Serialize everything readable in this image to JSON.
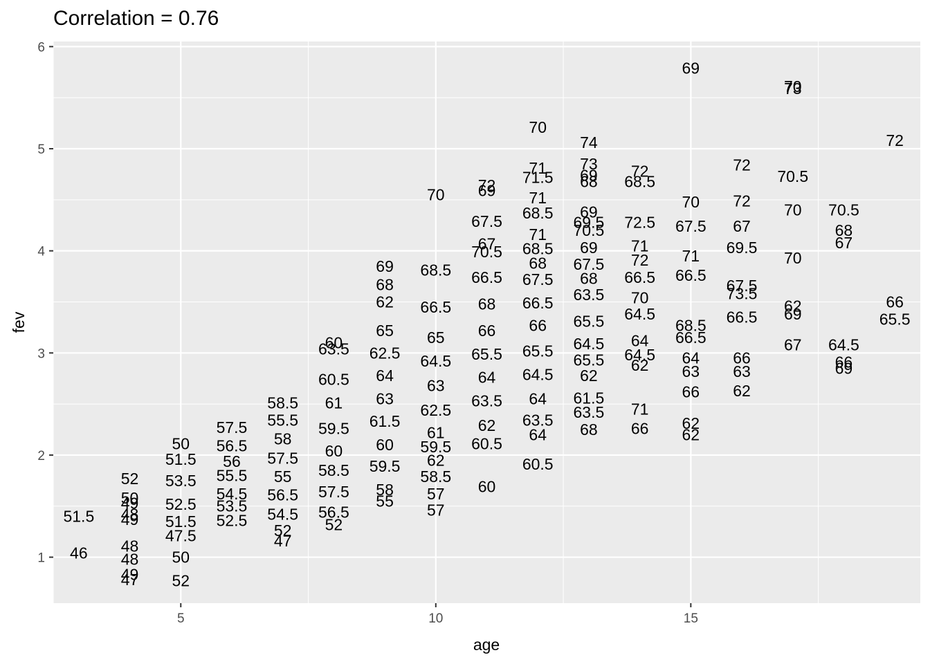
{
  "chart_data": {
    "type": "scatter",
    "title": "Correlation = 0.76",
    "xlabel": "age",
    "ylabel": "fev",
    "xlim": [
      2.5,
      19.5
    ],
    "ylim": [
      0.55,
      6.05
    ],
    "x_ticks": [
      5,
      10,
      15
    ],
    "y_ticks": [
      1,
      2,
      3,
      4,
      5,
      6
    ],
    "grid": true,
    "point_style": "text labels showing height",
    "points": [
      {
        "x": 3,
        "y": 1.4,
        "label": "51.5"
      },
      {
        "x": 3,
        "y": 1.04,
        "label": "46"
      },
      {
        "x": 4,
        "y": 1.77,
        "label": "52"
      },
      {
        "x": 4,
        "y": 1.58,
        "label": "50"
      },
      {
        "x": 4,
        "y": 1.53,
        "label": "49"
      },
      {
        "x": 4,
        "y": 1.42,
        "label": "48"
      },
      {
        "x": 4,
        "y": 1.37,
        "label": "49"
      },
      {
        "x": 4,
        "y": 1.11,
        "label": "48"
      },
      {
        "x": 4,
        "y": 0.98,
        "label": "48"
      },
      {
        "x": 4,
        "y": 0.83,
        "label": "49"
      },
      {
        "x": 4,
        "y": 0.78,
        "label": "47"
      },
      {
        "x": 5,
        "y": 2.11,
        "label": "50"
      },
      {
        "x": 5,
        "y": 1.96,
        "label": "51.5"
      },
      {
        "x": 5,
        "y": 1.75,
        "label": "53.5"
      },
      {
        "x": 5,
        "y": 1.52,
        "label": "52.5"
      },
      {
        "x": 5,
        "y": 1.35,
        "label": "51.5"
      },
      {
        "x": 5,
        "y": 1.21,
        "label": "47.5"
      },
      {
        "x": 5,
        "y": 1.0,
        "label": "50"
      },
      {
        "x": 5,
        "y": 0.77,
        "label": "52"
      },
      {
        "x": 6,
        "y": 2.27,
        "label": "57.5"
      },
      {
        "x": 6,
        "y": 2.09,
        "label": "56.5"
      },
      {
        "x": 6,
        "y": 1.94,
        "label": "56"
      },
      {
        "x": 6,
        "y": 1.8,
        "label": "55.5"
      },
      {
        "x": 6,
        "y": 1.62,
        "label": "54.5"
      },
      {
        "x": 6,
        "y": 1.5,
        "label": "53.5"
      },
      {
        "x": 6,
        "y": 1.36,
        "label": "52.5"
      },
      {
        "x": 7,
        "y": 2.51,
        "label": "58.5"
      },
      {
        "x": 7,
        "y": 2.34,
        "label": "55.5"
      },
      {
        "x": 7,
        "y": 2.16,
        "label": "58"
      },
      {
        "x": 7,
        "y": 1.97,
        "label": "57.5"
      },
      {
        "x": 7,
        "y": 1.79,
        "label": "55"
      },
      {
        "x": 7,
        "y": 1.61,
        "label": "56.5"
      },
      {
        "x": 7,
        "y": 1.42,
        "label": "54.5"
      },
      {
        "x": 7,
        "y": 1.26,
        "label": "52"
      },
      {
        "x": 7,
        "y": 1.16,
        "label": "47"
      },
      {
        "x": 8,
        "y": 3.1,
        "label": "60"
      },
      {
        "x": 8,
        "y": 3.04,
        "label": "63.5"
      },
      {
        "x": 8,
        "y": 2.74,
        "label": "60.5"
      },
      {
        "x": 8,
        "y": 2.51,
        "label": "61"
      },
      {
        "x": 8,
        "y": 2.26,
        "label": "59.5"
      },
      {
        "x": 8,
        "y": 2.04,
        "label": "60"
      },
      {
        "x": 8,
        "y": 1.85,
        "label": "58.5"
      },
      {
        "x": 8,
        "y": 1.64,
        "label": "57.5"
      },
      {
        "x": 8,
        "y": 1.44,
        "label": "56.5"
      },
      {
        "x": 8,
        "y": 1.32,
        "label": "52"
      },
      {
        "x": 9,
        "y": 3.85,
        "label": "69"
      },
      {
        "x": 9,
        "y": 3.67,
        "label": "68"
      },
      {
        "x": 9,
        "y": 3.5,
        "label": "62"
      },
      {
        "x": 9,
        "y": 3.22,
        "label": "65"
      },
      {
        "x": 9,
        "y": 3.0,
        "label": "62.5"
      },
      {
        "x": 9,
        "y": 2.78,
        "label": "64"
      },
      {
        "x": 9,
        "y": 2.55,
        "label": "63"
      },
      {
        "x": 9,
        "y": 2.33,
        "label": "61.5"
      },
      {
        "x": 9,
        "y": 2.1,
        "label": "60"
      },
      {
        "x": 9,
        "y": 1.89,
        "label": "59.5"
      },
      {
        "x": 9,
        "y": 1.66,
        "label": "58"
      },
      {
        "x": 9,
        "y": 1.55,
        "label": "55"
      },
      {
        "x": 10,
        "y": 4.55,
        "label": "70"
      },
      {
        "x": 10,
        "y": 3.81,
        "label": "68.5"
      },
      {
        "x": 10,
        "y": 3.45,
        "label": "66.5"
      },
      {
        "x": 10,
        "y": 3.15,
        "label": "65"
      },
      {
        "x": 10,
        "y": 2.92,
        "label": "64.5"
      },
      {
        "x": 10,
        "y": 2.68,
        "label": "63"
      },
      {
        "x": 10,
        "y": 2.44,
        "label": "62.5"
      },
      {
        "x": 10,
        "y": 2.22,
        "label": "61"
      },
      {
        "x": 10,
        "y": 2.08,
        "label": "59.5"
      },
      {
        "x": 10,
        "y": 1.95,
        "label": "62"
      },
      {
        "x": 10,
        "y": 1.79,
        "label": "58.5"
      },
      {
        "x": 10,
        "y": 1.62,
        "label": "57"
      },
      {
        "x": 10,
        "y": 1.46,
        "label": "57"
      },
      {
        "x": 11,
        "y": 4.64,
        "label": "72"
      },
      {
        "x": 11,
        "y": 4.59,
        "label": "69"
      },
      {
        "x": 11,
        "y": 4.29,
        "label": "67.5"
      },
      {
        "x": 11,
        "y": 4.07,
        "label": "67"
      },
      {
        "x": 11,
        "y": 3.99,
        "label": "70.5"
      },
      {
        "x": 11,
        "y": 3.74,
        "label": "66.5"
      },
      {
        "x": 11,
        "y": 3.48,
        "label": "68"
      },
      {
        "x": 11,
        "y": 3.22,
        "label": "66"
      },
      {
        "x": 11,
        "y": 2.99,
        "label": "65.5"
      },
      {
        "x": 11,
        "y": 2.76,
        "label": "64"
      },
      {
        "x": 11,
        "y": 2.53,
        "label": "63.5"
      },
      {
        "x": 11,
        "y": 2.29,
        "label": "62"
      },
      {
        "x": 11,
        "y": 2.11,
        "label": "60.5"
      },
      {
        "x": 11,
        "y": 1.69,
        "label": "60"
      },
      {
        "x": 12,
        "y": 5.21,
        "label": "70"
      },
      {
        "x": 12,
        "y": 4.81,
        "label": "71"
      },
      {
        "x": 12,
        "y": 4.72,
        "label": "71.5"
      },
      {
        "x": 12,
        "y": 4.52,
        "label": "71"
      },
      {
        "x": 12,
        "y": 4.37,
        "label": "68.5"
      },
      {
        "x": 12,
        "y": 4.16,
        "label": "71"
      },
      {
        "x": 12,
        "y": 4.02,
        "label": "68.5"
      },
      {
        "x": 12,
        "y": 3.88,
        "label": "68"
      },
      {
        "x": 12,
        "y": 3.72,
        "label": "67.5"
      },
      {
        "x": 12,
        "y": 3.49,
        "label": "66.5"
      },
      {
        "x": 12,
        "y": 3.27,
        "label": "66"
      },
      {
        "x": 12,
        "y": 3.02,
        "label": "65.5"
      },
      {
        "x": 12,
        "y": 2.79,
        "label": "64.5"
      },
      {
        "x": 12,
        "y": 2.55,
        "label": "64"
      },
      {
        "x": 12,
        "y": 2.34,
        "label": "63.5"
      },
      {
        "x": 12,
        "y": 2.2,
        "label": "64"
      },
      {
        "x": 12,
        "y": 1.91,
        "label": "60.5"
      },
      {
        "x": 13,
        "y": 5.06,
        "label": "74"
      },
      {
        "x": 13,
        "y": 4.85,
        "label": "73"
      },
      {
        "x": 13,
        "y": 4.74,
        "label": "69"
      },
      {
        "x": 13,
        "y": 4.68,
        "label": "68"
      },
      {
        "x": 13,
        "y": 4.38,
        "label": "69"
      },
      {
        "x": 13,
        "y": 4.28,
        "label": "69.5"
      },
      {
        "x": 13,
        "y": 4.2,
        "label": "70.5"
      },
      {
        "x": 13,
        "y": 4.03,
        "label": "69"
      },
      {
        "x": 13,
        "y": 3.87,
        "label": "67.5"
      },
      {
        "x": 13,
        "y": 3.73,
        "label": "68"
      },
      {
        "x": 13,
        "y": 3.57,
        "label": "63.5"
      },
      {
        "x": 13,
        "y": 3.31,
        "label": "65.5"
      },
      {
        "x": 13,
        "y": 3.09,
        "label": "64.5"
      },
      {
        "x": 13,
        "y": 2.93,
        "label": "65.5"
      },
      {
        "x": 13,
        "y": 2.78,
        "label": "62"
      },
      {
        "x": 13,
        "y": 2.56,
        "label": "61.5"
      },
      {
        "x": 13,
        "y": 2.42,
        "label": "63.5"
      },
      {
        "x": 13,
        "y": 2.25,
        "label": "68"
      },
      {
        "x": 14,
        "y": 4.78,
        "label": "72"
      },
      {
        "x": 14,
        "y": 4.68,
        "label": "68.5"
      },
      {
        "x": 14,
        "y": 4.28,
        "label": "72.5"
      },
      {
        "x": 14,
        "y": 4.05,
        "label": "71"
      },
      {
        "x": 14,
        "y": 3.91,
        "label": "72"
      },
      {
        "x": 14,
        "y": 3.74,
        "label": "66.5"
      },
      {
        "x": 14,
        "y": 3.54,
        "label": "70"
      },
      {
        "x": 14,
        "y": 3.38,
        "label": "64.5"
      },
      {
        "x": 14,
        "y": 3.12,
        "label": "64"
      },
      {
        "x": 14,
        "y": 2.98,
        "label": "64.5"
      },
      {
        "x": 14,
        "y": 2.88,
        "label": "62"
      },
      {
        "x": 14,
        "y": 2.45,
        "label": "71"
      },
      {
        "x": 14,
        "y": 2.26,
        "label": "66"
      },
      {
        "x": 15,
        "y": 5.79,
        "label": "69"
      },
      {
        "x": 15,
        "y": 4.48,
        "label": "70"
      },
      {
        "x": 15,
        "y": 4.24,
        "label": "67.5"
      },
      {
        "x": 15,
        "y": 3.95,
        "label": "71"
      },
      {
        "x": 15,
        "y": 3.76,
        "label": "66.5"
      },
      {
        "x": 15,
        "y": 3.27,
        "label": "68.5"
      },
      {
        "x": 15,
        "y": 3.15,
        "label": "66.5"
      },
      {
        "x": 15,
        "y": 2.95,
        "label": "64"
      },
      {
        "x": 15,
        "y": 2.82,
        "label": "63"
      },
      {
        "x": 15,
        "y": 2.62,
        "label": "66"
      },
      {
        "x": 15,
        "y": 2.31,
        "label": "62"
      },
      {
        "x": 15,
        "y": 2.2,
        "label": "62"
      },
      {
        "x": 16,
        "y": 4.84,
        "label": "72"
      },
      {
        "x": 16,
        "y": 4.49,
        "label": "72"
      },
      {
        "x": 16,
        "y": 4.24,
        "label": "67"
      },
      {
        "x": 16,
        "y": 4.03,
        "label": "69.5"
      },
      {
        "x": 16,
        "y": 3.66,
        "label": "67.5"
      },
      {
        "x": 16,
        "y": 3.58,
        "label": "73.5"
      },
      {
        "x": 16,
        "y": 3.35,
        "label": "66.5"
      },
      {
        "x": 16,
        "y": 2.95,
        "label": "66"
      },
      {
        "x": 16,
        "y": 2.82,
        "label": "63"
      },
      {
        "x": 16,
        "y": 2.63,
        "label": "62"
      },
      {
        "x": 17,
        "y": 5.61,
        "label": "70"
      },
      {
        "x": 17,
        "y": 5.59,
        "label": "73"
      },
      {
        "x": 17,
        "y": 4.73,
        "label": "70.5"
      },
      {
        "x": 17,
        "y": 4.4,
        "label": "70"
      },
      {
        "x": 17,
        "y": 3.93,
        "label": "70"
      },
      {
        "x": 17,
        "y": 3.46,
        "label": "62"
      },
      {
        "x": 17,
        "y": 3.38,
        "label": "69"
      },
      {
        "x": 17,
        "y": 3.08,
        "label": "67"
      },
      {
        "x": 18,
        "y": 4.4,
        "label": "70.5"
      },
      {
        "x": 18,
        "y": 4.2,
        "label": "68"
      },
      {
        "x": 18,
        "y": 4.08,
        "label": "67"
      },
      {
        "x": 18,
        "y": 3.08,
        "label": "64.5"
      },
      {
        "x": 18,
        "y": 2.91,
        "label": "66"
      },
      {
        "x": 18,
        "y": 2.85,
        "label": "69"
      },
      {
        "x": 19,
        "y": 5.08,
        "label": "72"
      },
      {
        "x": 19,
        "y": 3.5,
        "label": "66"
      },
      {
        "x": 19,
        "y": 3.33,
        "label": "65.5"
      }
    ]
  }
}
